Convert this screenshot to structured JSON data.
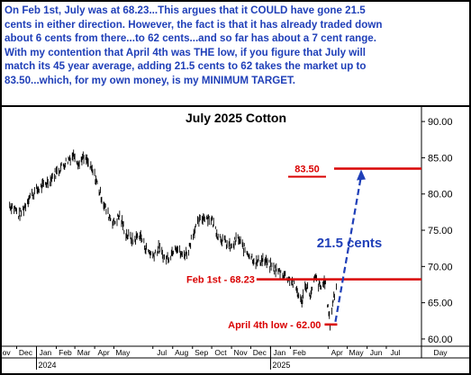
{
  "note": {
    "text": "On Feb 1st, July was at 68.23...This argues that it COULD have gone 21.5\ncents in either direction. However, the fact is that it has already traded down\nabout 6 cents from there...to 62 cents...and so far has about a 7 cent range.\nWith my contention that April 4th was THE low, if you figure that July will\nmatch its 45 year average, adding 21.5 cents to 62 takes the market up to\n83.50...which, for my own money, is my MINIMUM TARGET."
  },
  "colors": {
    "note_text": "#1f3fb8",
    "annotation_red": "#d90000",
    "projection_blue": "#1f3fb8",
    "price": "#000000"
  },
  "chart_data": {
    "type": "bar",
    "title": "July 2025 Cotton",
    "xlabel": "",
    "ylabel": "",
    "ylim": [
      59,
      92
    ],
    "grid": false,
    "y_ticks": [
      "90.00",
      "85.00",
      "80.00",
      "75.00",
      "70.00",
      "65.00",
      "60.00"
    ],
    "x_ticks": [
      "ov",
      "Dec",
      "Jan",
      "Feb",
      "Mar",
      "Apr",
      "May",
      "Jul",
      "Aug",
      "Sep",
      "Oct",
      "Nov",
      "Dec",
      "Jan",
      "Feb",
      "Apr",
      "May",
      "Jun",
      "Jul",
      "Day"
    ],
    "year_labels": [
      "2024",
      "2025"
    ],
    "price_path": [
      [
        "2023-11-20",
        78.5
      ],
      [
        "2023-11-28",
        78.0
      ],
      [
        "2023-12-05",
        77.0
      ],
      [
        "2023-12-12",
        78.0
      ],
      [
        "2023-12-20",
        79.5
      ],
      [
        "2024-01-01",
        80.5
      ],
      [
        "2024-01-10",
        81.0
      ],
      [
        "2024-01-20",
        81.8
      ],
      [
        "2024-02-01",
        83.0
      ],
      [
        "2024-02-12",
        84.0
      ],
      [
        "2024-02-22",
        85.0
      ],
      [
        "2024-03-01",
        85.5
      ],
      [
        "2024-03-08",
        84.0
      ],
      [
        "2024-03-12",
        85.0
      ],
      [
        "2024-03-20",
        84.5
      ],
      [
        "2024-04-01",
        82.5
      ],
      [
        "2024-04-10",
        80.0
      ],
      [
        "2024-04-20",
        77.5
      ],
      [
        "2024-05-01",
        76.0
      ],
      [
        "2024-05-10",
        77.0
      ],
      [
        "2024-05-20",
        74.5
      ],
      [
        "2024-06-01",
        73.5
      ],
      [
        "2024-06-10",
        74.5
      ],
      [
        "2024-06-20",
        72.5
      ],
      [
        "2024-07-01",
        71.5
      ],
      [
        "2024-07-10",
        72.5
      ],
      [
        "2024-07-20",
        71.0
      ],
      [
        "2024-07-28",
        71.5
      ],
      [
        "2024-08-05",
        73.0
      ],
      [
        "2024-08-15",
        71.5
      ],
      [
        "2024-08-25",
        72.0
      ],
      [
        "2024-09-01",
        74.5
      ],
      [
        "2024-09-10",
        76.0
      ],
      [
        "2024-09-20",
        77.0
      ],
      [
        "2024-10-01",
        76.5
      ],
      [
        "2024-10-10",
        74.5
      ],
      [
        "2024-10-20",
        73.5
      ],
      [
        "2024-11-01",
        72.5
      ],
      [
        "2024-11-10",
        74.0
      ],
      [
        "2024-11-20",
        72.5
      ],
      [
        "2024-12-01",
        71.5
      ],
      [
        "2024-12-10",
        70.5
      ],
      [
        "2024-12-20",
        71.0
      ],
      [
        "2025-01-01",
        70.0
      ],
      [
        "2025-01-10",
        69.5
      ],
      [
        "2025-01-20",
        69.0
      ],
      [
        "2025-02-01",
        68.2
      ],
      [
        "2025-02-10",
        67.0
      ],
      [
        "2025-02-18",
        65.0
      ],
      [
        "2025-02-25",
        67.5
      ],
      [
        "2025-03-05",
        66.0
      ],
      [
        "2025-03-12",
        68.5
      ],
      [
        "2025-03-20",
        67.0
      ],
      [
        "2025-03-27",
        68.0
      ],
      [
        "2025-04-04",
        62.0
      ],
      [
        "2025-04-09",
        65.5
      ],
      [
        "2025-04-14",
        67.0
      ]
    ],
    "annotations": [
      {
        "text": "83.50",
        "level": 83.5,
        "color": "red"
      },
      {
        "text": "Feb 1st - 68.23",
        "level": 68.23,
        "color": "red"
      },
      {
        "text": "April 4th low - 62.00",
        "level": 62.0,
        "color": "red"
      },
      {
        "text": "21.5 cents",
        "color": "blue",
        "from": 62.0,
        "to": 83.5
      }
    ]
  }
}
